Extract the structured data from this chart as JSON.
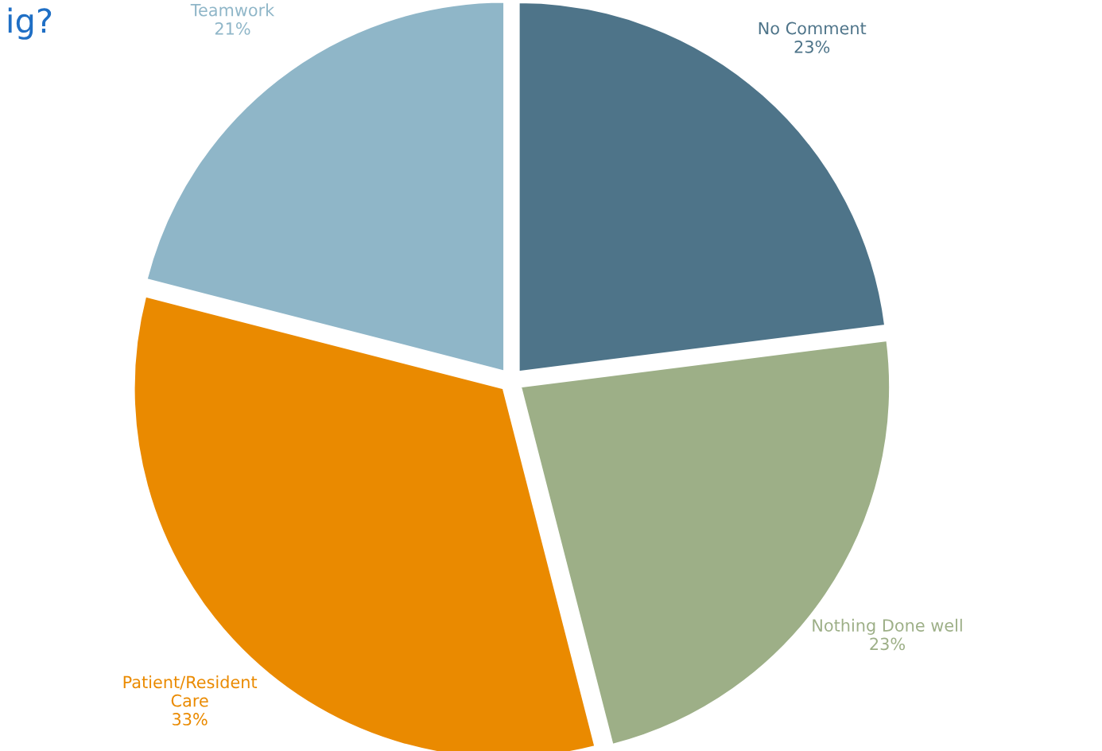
{
  "chart_data": {
    "type": "pie",
    "title": "ig?",
    "categories": [
      "No Comment",
      "Nothing Done well",
      "Patient/Resident\nCare",
      "Teamwork"
    ],
    "values": [
      23,
      23,
      33,
      21
    ],
    "colors": [
      "#4e7489",
      "#9daf87",
      "#ea8a00",
      "#8fb6c8"
    ],
    "value_labels": [
      "23%",
      "23%",
      "33%",
      "21%"
    ],
    "legend": false
  }
}
